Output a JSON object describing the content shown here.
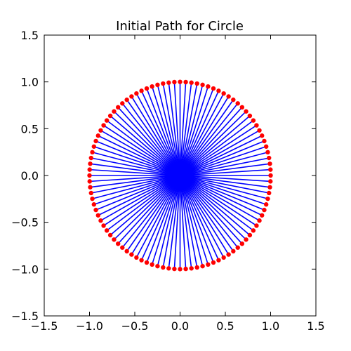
{
  "chart_data": {
    "type": "line",
    "title": "Initial Path for Circle",
    "xlabel": "",
    "ylabel": "",
    "xlim": [
      -1.5,
      1.5
    ],
    "ylim": [
      -1.5,
      1.5
    ],
    "grid": false,
    "x_ticks": [
      "−1.5",
      "−1.0",
      "−0.5",
      "0.0",
      "0.5",
      "1.0",
      "1.5"
    ],
    "y_ticks": [
      "−1.5",
      "−1.0",
      "−0.5",
      "0.0",
      "0.5",
      "1.0",
      "1.5"
    ],
    "x_tick_values": [
      -1.5,
      -1.0,
      -0.5,
      0.0,
      0.5,
      1.0,
      1.5
    ],
    "y_tick_values": [
      -1.5,
      -1.0,
      -0.5,
      0.0,
      0.5,
      1.0,
      1.5
    ],
    "circle": {
      "center": [
        0,
        0
      ],
      "radius": 1.0,
      "point_count": 100
    },
    "points_color": "#ff0000",
    "path_color": "#0000ff"
  }
}
